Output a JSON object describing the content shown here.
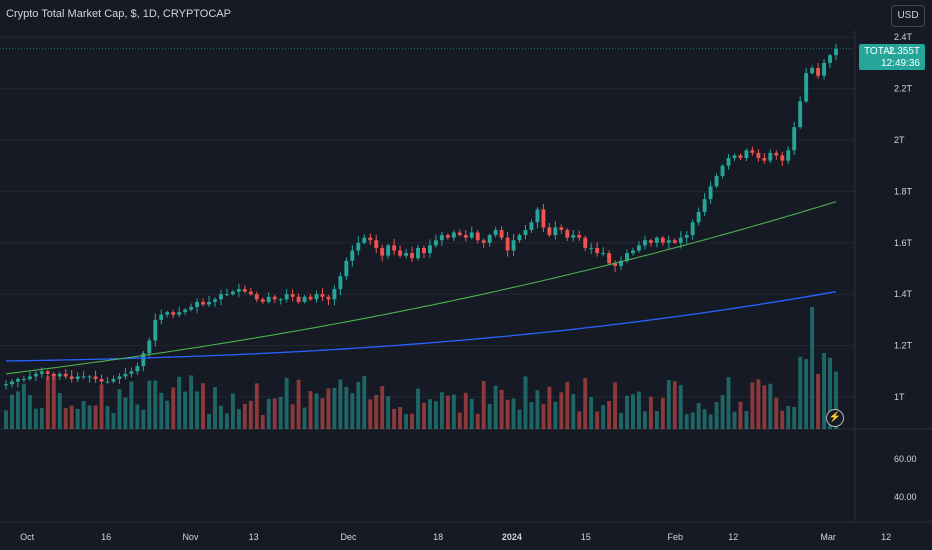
{
  "header": {
    "title": "Crypto Total Market Cap, $, 1D, CRYPTOCAP",
    "currency_button": "USD"
  },
  "price_tag": {
    "symbol": "TOTAL",
    "price": "2.355T",
    "countdown": "12:49:36"
  },
  "colors": {
    "background": "#161a25",
    "up": "#26a69a",
    "down": "#ef5350",
    "ma_fast": "#4caf50",
    "ma_slow": "#2962ff",
    "grid": "#232733",
    "text": "#d1d4dc"
  },
  "icons": {
    "alert": "lightning-icon"
  },
  "chart_data": {
    "type": "candlestick",
    "title": "Crypto Total Market Cap, $, 1D, CRYPTOCAP",
    "y_axis": {
      "ticks": [
        "2.4T",
        "2.2T",
        "2T",
        "1.8T",
        "1.6T",
        "1.4T",
        "1.2T",
        "1T"
      ],
      "tick_values": [
        2.4,
        2.2,
        2.0,
        1.8,
        1.6,
        1.4,
        1.2,
        1.0
      ],
      "unit": "T"
    },
    "indicator_axis": {
      "ticks": [
        "60.00",
        "40.00"
      ],
      "tick_values": [
        60,
        40
      ]
    },
    "x_axis": {
      "ticks": [
        "Oct",
        "16",
        "Nov",
        "13",
        "Dec",
        "18",
        "2024",
        "15",
        "Feb",
        "12",
        "Mar",
        "12"
      ],
      "tick_dates": [
        "2023-10-01",
        "2023-10-16",
        "2023-11-01",
        "2023-11-13",
        "2023-12-01",
        "2023-12-18",
        "2024-01-01",
        "2024-01-15",
        "2024-02-01",
        "2024-02-12",
        "2024-03-01",
        "2024-03-12"
      ]
    },
    "last_price": 2.355,
    "candles_close": [
      1.05,
      1.06,
      1.07,
      1.07,
      1.08,
      1.09,
      1.1,
      1.09,
      1.08,
      1.09,
      1.08,
      1.07,
      1.08,
      1.08,
      1.08,
      1.07,
      1.06,
      1.06,
      1.07,
      1.08,
      1.09,
      1.1,
      1.12,
      1.17,
      1.22,
      1.3,
      1.32,
      1.33,
      1.32,
      1.33,
      1.34,
      1.35,
      1.37,
      1.36,
      1.37,
      1.38,
      1.4,
      1.4,
      1.41,
      1.42,
      1.41,
      1.4,
      1.38,
      1.37,
      1.39,
      1.38,
      1.38,
      1.4,
      1.39,
      1.37,
      1.39,
      1.38,
      1.4,
      1.39,
      1.38,
      1.42,
      1.47,
      1.53,
      1.57,
      1.6,
      1.62,
      1.61,
      1.58,
      1.55,
      1.59,
      1.57,
      1.55,
      1.56,
      1.54,
      1.58,
      1.56,
      1.59,
      1.61,
      1.63,
      1.62,
      1.64,
      1.63,
      1.62,
      1.64,
      1.61,
      1.6,
      1.63,
      1.65,
      1.62,
      1.57,
      1.61,
      1.63,
      1.65,
      1.68,
      1.73,
      1.66,
      1.63,
      1.66,
      1.65,
      1.62,
      1.63,
      1.62,
      1.58,
      1.58,
      1.56,
      1.56,
      1.52,
      1.51,
      1.53,
      1.56,
      1.57,
      1.59,
      1.61,
      1.6,
      1.62,
      1.6,
      1.61,
      1.6,
      1.62,
      1.63,
      1.68,
      1.72,
      1.77,
      1.82,
      1.86,
      1.9,
      1.93,
      1.94,
      1.93,
      1.96,
      1.95,
      1.93,
      1.92,
      1.95,
      1.94,
      1.92,
      1.96,
      2.05,
      2.15,
      2.26,
      2.28,
      2.25,
      2.3,
      2.33,
      2.355
    ],
    "ma_fast_range": [
      1.09,
      1.76
    ],
    "ma_slow_range": [
      1.14,
      1.41
    ],
    "volume_note": "relative"
  }
}
